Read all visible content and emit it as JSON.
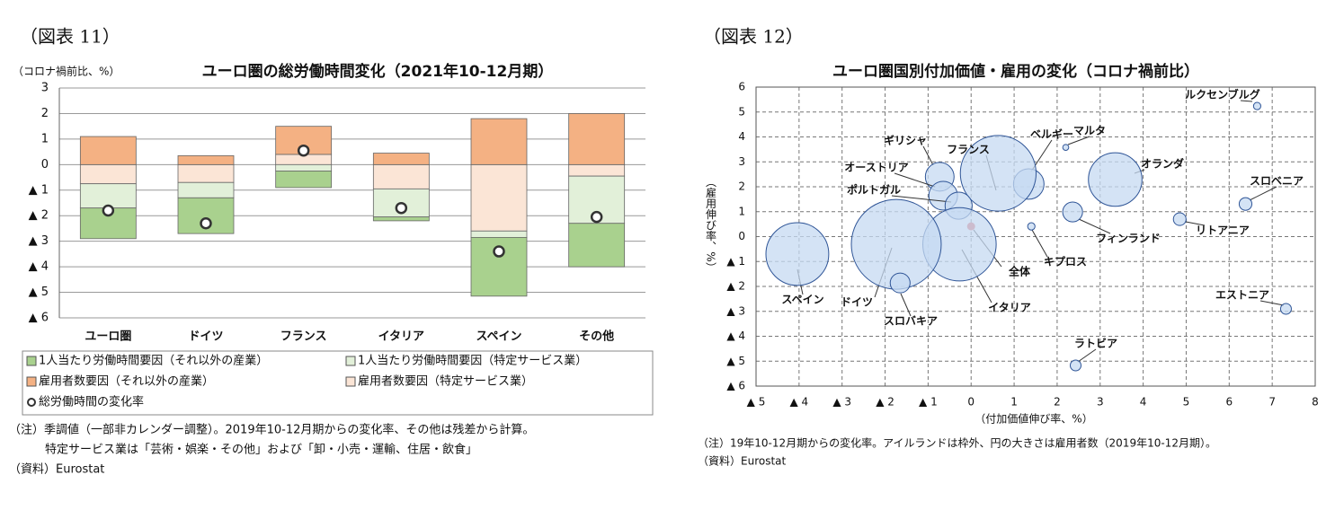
{
  "chart_data": [
    {
      "type": "bar",
      "stacked": true,
      "figure_label": "（図表 11）",
      "y_unit_label": "（コロナ禍前比、%）",
      "title": "ユーロ圏の総労働時間変化（2021年10-12月期）",
      "categories": [
        "ユーロ圏",
        "ドイツ",
        "フランス",
        "イタリア",
        "スペイン",
        "その他"
      ],
      "series": [
        {
          "name": "1人当たり労働時間要因（それ以外の産業）",
          "color": "#a9d18e",
          "values": [
            -1.2,
            -1.4,
            -0.65,
            -0.15,
            -2.3,
            -1.7
          ]
        },
        {
          "name": "1人当たり労働時間要因（特定サービス業）",
          "color": "#e2f0d9",
          "values": [
            -0.95,
            -0.6,
            -0.25,
            -1.1,
            -0.25,
            -1.85
          ]
        },
        {
          "name": "雇用者数要因（それ以外の産業）",
          "color": "#f4b183",
          "values": [
            1.1,
            0.35,
            1.1,
            0.45,
            1.8,
            2.0
          ]
        },
        {
          "name": "雇用者数要因（特定サービス業）",
          "color": "#fbe5d6",
          "values": [
            -0.75,
            -0.7,
            0.4,
            -0.95,
            -2.6,
            -0.45
          ]
        },
        {
          "name": "総労働時間の変化率",
          "type": "scatter",
          "color": "#ffffff",
          "values": [
            -1.8,
            -2.3,
            0.55,
            -1.7,
            -3.4,
            -2.05
          ]
        }
      ],
      "ylim": [
        -6,
        3
      ],
      "yticks": [
        3,
        2,
        1,
        0,
        {
          "value": -1,
          "label": "▲ 1"
        },
        {
          "value": -2,
          "label": "▲ 2"
        },
        {
          "value": -3,
          "label": "▲ 3"
        },
        {
          "value": -4,
          "label": "▲ 4"
        },
        {
          "value": -5,
          "label": "▲ 5"
        },
        {
          "value": -6,
          "label": "▲ 6"
        }
      ],
      "grid": true,
      "notes": [
        "（注）季調値（一部非カレンダー調整）。2019年10-12月期からの変化率、その他は残差から計算。",
        "特定サービス業は「芸術・娯楽・その他」および「卸・小売・運輸、住居・飲食」"
      ],
      "source": "（資料）Eurostat"
    },
    {
      "type": "bubble",
      "figure_label": "（図表 12）",
      "title": "ユーロ圏国別付加価値・雇用の変化（コロナ禍前比）",
      "x_label": "（付加価値伸び率、%）",
      "y_label": "（雇用伸び率、%）",
      "color": "#c5d9f1",
      "edge_color": "#2f5597",
      "points": [
        {
          "label": "ルクセンブルグ",
          "x": 6.65,
          "y": 5.24,
          "size": 0.3
        },
        {
          "label": "マルタ",
          "x": 2.2,
          "y": 3.58,
          "size": 0.2
        },
        {
          "label": "オランダ",
          "x": 3.35,
          "y": 2.29,
          "size": 16
        },
        {
          "label": "スロベニア",
          "x": 6.38,
          "y": 1.31,
          "size": 0.9
        },
        {
          "label": "リトアニア",
          "x": 4.85,
          "y": 0.7,
          "size": 0.9
        },
        {
          "label": "フィンランド",
          "x": 2.36,
          "y": 0.99,
          "size": 2.2
        },
        {
          "label": "キプロス",
          "x": 1.4,
          "y": 0.41,
          "size": 0.3
        },
        {
          "label": "ベルギー",
          "x": 1.34,
          "y": 2.11,
          "size": 5.2
        },
        {
          "label": "フランス",
          "x": 0.63,
          "y": 2.54,
          "size": 32
        },
        {
          "label": "ギリシャ",
          "x": -0.73,
          "y": 2.4,
          "size": 4.6
        },
        {
          "label": "オーストリア",
          "x": -0.65,
          "y": 1.64,
          "size": 4.6
        },
        {
          "label": "ポルトガル",
          "x": -0.29,
          "y": 1.24,
          "size": 4.1
        },
        {
          "label": "全体",
          "x": 0,
          "y": 0.41,
          "size": null,
          "color": "#e06666"
        },
        {
          "label": "イタリア",
          "x": -0.27,
          "y": -0.31,
          "size": 30
        },
        {
          "label": "ドイツ",
          "x": -1.74,
          "y": -0.31,
          "size": 45
        },
        {
          "label": "スペイン",
          "x": -4.04,
          "y": -0.7,
          "size": 22
        },
        {
          "label": "スロバキア",
          "x": -1.65,
          "y": -1.86,
          "size": 2.2
        },
        {
          "label": "エストニア",
          "x": 7.32,
          "y": -2.9,
          "size": 0.65
        },
        {
          "label": "ラトビア",
          "x": 2.43,
          "y": -5.17,
          "size": 0.65
        }
      ],
      "xlim": [
        -5,
        8
      ],
      "ylim": [
        -6,
        6
      ],
      "xticks": [
        {
          "value": -5,
          "label": "▲ 5"
        },
        {
          "value": -4,
          "label": "▲ 4"
        },
        {
          "value": -3,
          "label": "▲ 3"
        },
        {
          "value": -2,
          "label": "▲ 2"
        },
        {
          "value": -1,
          "label": "▲ 1"
        },
        0,
        1,
        2,
        3,
        4,
        5,
        6,
        7,
        8
      ],
      "yticks": [
        6,
        5,
        4,
        3,
        2,
        1,
        0,
        {
          "value": -1,
          "label": "▲ 1"
        },
        {
          "value": -2,
          "label": "▲ 2"
        },
        {
          "value": -3,
          "label": "▲ 3"
        },
        {
          "value": -4,
          "label": "▲ 4"
        },
        {
          "value": -5,
          "label": "▲ 5"
        },
        {
          "value": -6,
          "label": "▲ 6"
        }
      ],
      "grid": true,
      "notes": [
        "（注）19年10-12月期からの変化率。アイルランドは枠外、円の大きさは雇用者数（2019年10-12月期）。"
      ],
      "source": "（資料）Eurostat"
    }
  ]
}
